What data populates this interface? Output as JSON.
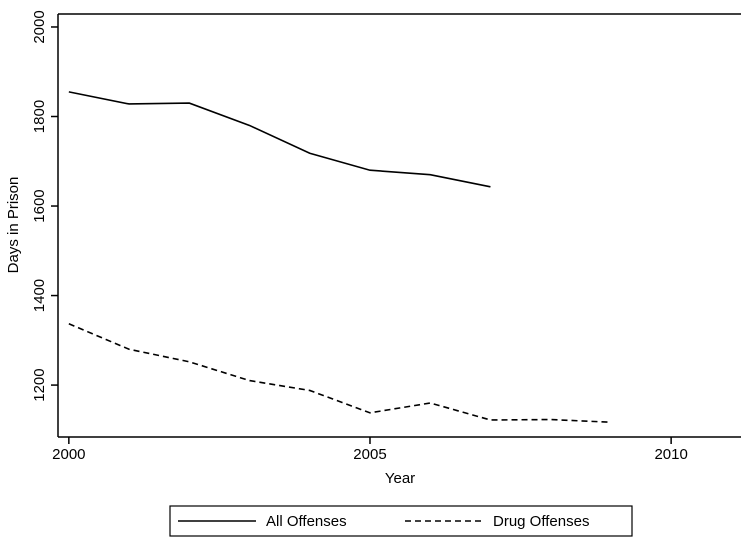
{
  "chart_data": {
    "type": "line",
    "x_label": "Year",
    "y_label": "Days in Prison",
    "x": [
      2000,
      2001,
      2002,
      2003,
      2004,
      2005,
      2006,
      2007,
      2008,
      2009
    ],
    "series": [
      {
        "name": "All Offenses",
        "color": "#000000",
        "dash": "solid",
        "values": [
          1855,
          1828,
          1830,
          1780,
          1718,
          1680,
          1670,
          1643,
          null,
          null
        ]
      },
      {
        "name": "Drug Offenses",
        "color": "#000000",
        "dash": "dashed",
        "values": [
          1337,
          1280,
          1252,
          1210,
          1188,
          1138,
          1160,
          1122,
          1123,
          1117
        ]
      }
    ],
    "xlim": [
      1999.82,
      2011.16
    ],
    "xticks": [
      2000,
      2005,
      2010
    ],
    "ylim": [
      1084,
      2029
    ],
    "yticks": [
      1200,
      1400,
      1600,
      1800,
      2000
    ],
    "legend": "bottom",
    "grid": false
  }
}
